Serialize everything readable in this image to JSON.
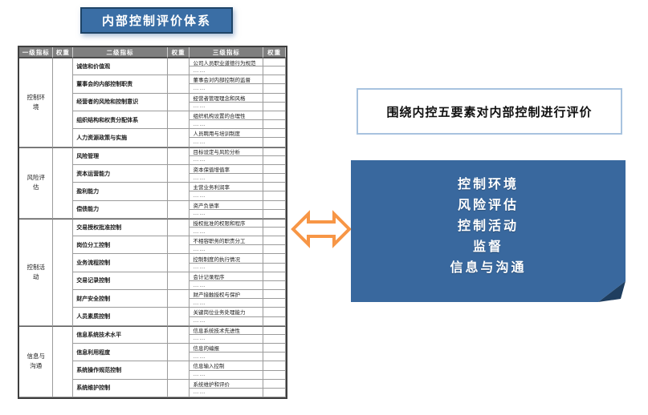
{
  "title": "内部控制评价体系",
  "colors": {
    "accent_blue": "#3A6EA5",
    "panel_blue": "#39689E",
    "arrow_orange": "#F79646",
    "header_gray": "#7F7F7F",
    "callout_border": "#A8C3DF"
  },
  "table": {
    "headers": [
      "一级指标",
      "权重",
      "二级指标",
      "权重",
      "三级指标",
      "权重"
    ],
    "ellipsis": "……",
    "sections": [
      {
        "level1": "控制环境",
        "weight": "",
        "items": [
          {
            "label": "诚信和价值观",
            "weight": "",
            "sub": "公司人员职业道德行为规范",
            "subWeight": ""
          },
          {
            "label": "董事会的内部控制职责",
            "weight": "",
            "sub": "董事会对内部控制的监督",
            "subWeight": ""
          },
          {
            "label": "经营者的风险和控制意识",
            "weight": "",
            "sub": "经营者管理理念和风格",
            "subWeight": ""
          },
          {
            "label": "组织结构和权责分配体系",
            "weight": "",
            "sub": "组织机构设置的合理性",
            "subWeight": ""
          },
          {
            "label": "人力资源政策与实施",
            "weight": "",
            "sub": "人员聘用与培训制度",
            "subWeight": ""
          }
        ]
      },
      {
        "level1": "风险评估",
        "weight": "",
        "items": [
          {
            "label": "风险管理",
            "weight": "",
            "sub": "目标设定与风险分析",
            "subWeight": ""
          },
          {
            "label": "资本运营能力",
            "weight": "",
            "sub": "资本保值增值率",
            "subWeight": ""
          },
          {
            "label": "盈利能力",
            "weight": "",
            "sub": "主营业务利润率",
            "subWeight": ""
          },
          {
            "label": "偿债能力",
            "weight": "",
            "sub": "资产负债率",
            "subWeight": ""
          }
        ]
      },
      {
        "level1": "控制活动",
        "weight": "",
        "items": [
          {
            "label": "交易授权批准控制",
            "weight": "",
            "sub": "授权批准的权限和程序",
            "subWeight": ""
          },
          {
            "label": "岗位分工控制",
            "weight": "",
            "sub": "不相容职务的职责分工",
            "subWeight": ""
          },
          {
            "label": "业务流程控制",
            "weight": "",
            "sub": "控制制度的执行情况",
            "subWeight": ""
          },
          {
            "label": "交易记录控制",
            "weight": "",
            "sub": "会计记录程序",
            "subWeight": ""
          },
          {
            "label": "财产安全控制",
            "weight": "",
            "sub": "财产接触授权与保护",
            "subWeight": ""
          },
          {
            "label": "人员素质控制",
            "weight": "",
            "sub": "关键岗位业务处理能力",
            "subWeight": ""
          }
        ]
      },
      {
        "level1": "信息与沟通",
        "weight": "",
        "items": [
          {
            "label": "信息系统技术水平",
            "weight": "",
            "sub": "信息系统技术先进性",
            "subWeight": ""
          },
          {
            "label": "信息利用程度",
            "weight": "",
            "sub": "信息的编报",
            "subWeight": ""
          },
          {
            "label": "系统操作规范控制",
            "weight": "",
            "sub": "信息输入控制",
            "subWeight": ""
          },
          {
            "label": "系统维护控制",
            "weight": "",
            "sub": "系统维护和评价",
            "subWeight": ""
          }
        ]
      }
    ]
  },
  "callout": {
    "text": "围绕内控五要素对内部控制进行评价"
  },
  "panel": {
    "items": [
      "控制环境",
      "风险评估",
      "控制活动",
      "监督",
      "信息与沟通"
    ]
  }
}
